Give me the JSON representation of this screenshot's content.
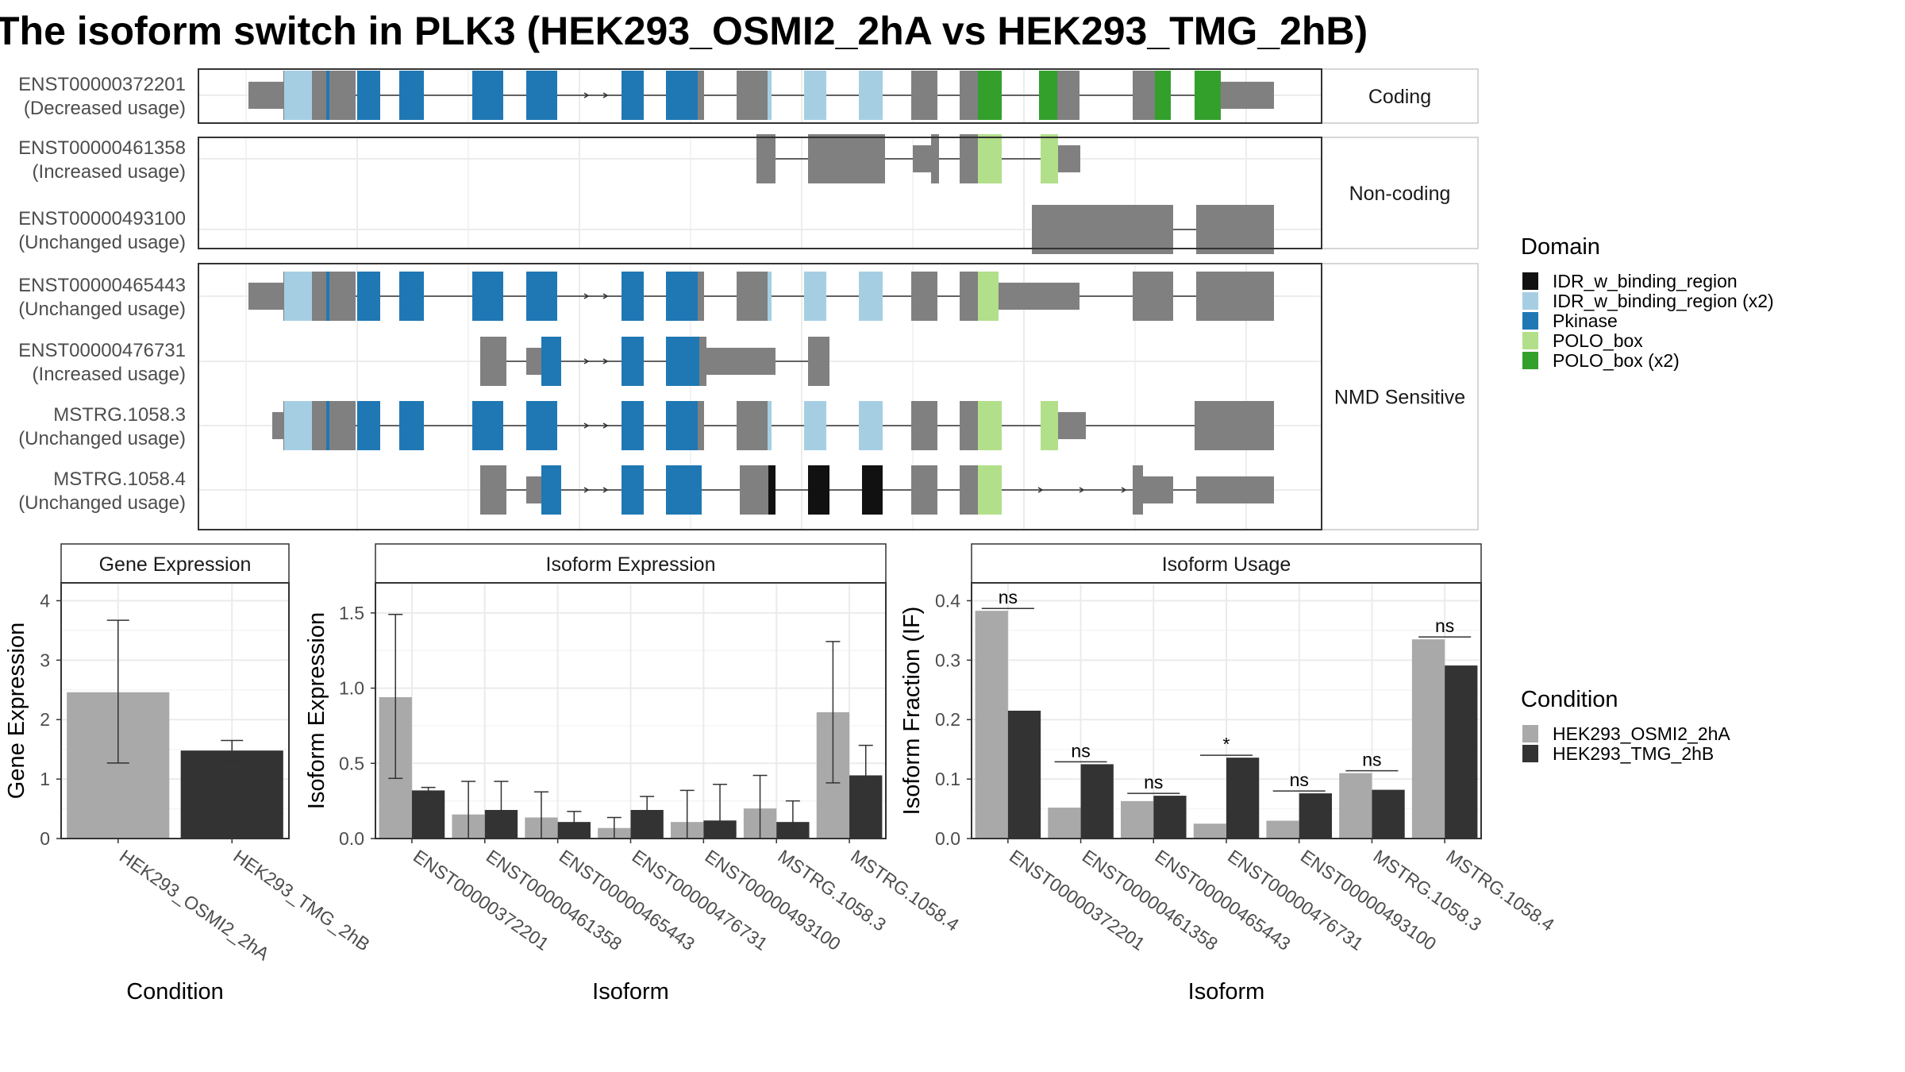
{
  "title": "The isoform switch in PLK3 (HEK293_OSMI2_2hA vs HEK293_TMG_2hB)",
  "colors": {
    "IDR_w_binding_region": "#111111",
    "IDR_w_binding_region_x2": "#a6cee3",
    "Pkinase": "#1f78b4",
    "POLO_box": "#b2df8a",
    "POLO_box_x2": "#33a02c",
    "exon": "#808080",
    "cond_a": "#a9a9a9",
    "cond_b": "#333333"
  },
  "transcripts": {
    "groups": [
      "Coding",
      "Non-coding",
      "NMD Sensitive"
    ],
    "rows": [
      {
        "id": "ENST00000372201",
        "usage": "(Decreased usage)",
        "group": 0
      },
      {
        "id": "ENST00000461358",
        "usage": "(Increased usage)",
        "group": 1
      },
      {
        "id": "ENST00000493100",
        "usage": "(Unchanged usage)",
        "group": 1
      },
      {
        "id": "ENST00000465443",
        "usage": "(Unchanged usage)",
        "group": 2
      },
      {
        "id": "ENST00000476731",
        "usage": "(Increased usage)",
        "group": 2
      },
      {
        "id": "MSTRG.1058.3",
        "usage": "(Unchanged usage)",
        "group": 2
      },
      {
        "id": "MSTRG.1058.4",
        "usage": "(Unchanged usage)",
        "group": 2
      }
    ]
  },
  "legend_domain": {
    "title": "Domain",
    "items": [
      {
        "label": "IDR_w_binding_region",
        "color": "#111111"
      },
      {
        "label": "IDR_w_binding_region (x2)",
        "color": "#a6cee3"
      },
      {
        "label": "Pkinase",
        "color": "#1f78b4"
      },
      {
        "label": "POLO_box",
        "color": "#b2df8a"
      },
      {
        "label": "POLO_box (x2)",
        "color": "#33a02c"
      }
    ]
  },
  "legend_condition": {
    "title": "Condition",
    "items": [
      {
        "label": "HEK293_OSMI2_2hA",
        "color": "#a9a9a9"
      },
      {
        "label": "HEK293_TMG_2hB",
        "color": "#333333"
      }
    ]
  },
  "chart_data": [
    {
      "type": "bar",
      "panel": "Gene Expression",
      "xlabel": "Condition",
      "ylabel": "Gene Expression",
      "ylim": [
        0,
        4.3
      ],
      "yticks": [
        0,
        1,
        2,
        3,
        4
      ],
      "categories": [
        "HEK293_OSMI2_2hA",
        "HEK293_TMG_2hB"
      ],
      "values": [
        2.46,
        1.48
      ],
      "error_low": [
        1.27,
        1.31
      ],
      "error_high": [
        3.67,
        1.65
      ],
      "grid": true
    },
    {
      "type": "bar",
      "panel": "Isoform Expression",
      "xlabel": "Isoform",
      "ylabel": "Isoform Expression",
      "ylim": [
        0,
        1.7
      ],
      "yticks": [
        0.0,
        0.5,
        1.0,
        1.5
      ],
      "categories": [
        "ENST00000372201",
        "ENST00000461358",
        "ENST00000465443",
        "ENST00000476731",
        "ENST00000493100",
        "MSTRG.1058.3",
        "MSTRG.1058.4"
      ],
      "series": [
        {
          "name": "HEK293_OSMI2_2hA",
          "values": [
            0.94,
            0.16,
            0.14,
            0.07,
            0.11,
            0.2,
            0.84
          ],
          "error_low": [
            0.4,
            0.0,
            0.0,
            0.0,
            0.0,
            0.0,
            0.37
          ],
          "error_high": [
            1.49,
            0.38,
            0.31,
            0.14,
            0.32,
            0.42,
            1.31
          ]
        },
        {
          "name": "HEK293_TMG_2hB",
          "values": [
            0.32,
            0.19,
            0.11,
            0.19,
            0.12,
            0.11,
            0.42
          ],
          "error_low": [
            0.3,
            0.0,
            0.04,
            0.1,
            0.0,
            0.0,
            0.22
          ],
          "error_high": [
            0.34,
            0.38,
            0.18,
            0.28,
            0.36,
            0.25,
            0.62
          ]
        }
      ],
      "grid": true
    },
    {
      "type": "bar",
      "panel": "Isoform Usage",
      "xlabel": "Isoform",
      "ylabel": "Isoform Fraction (IF)",
      "ylim": [
        0,
        0.43
      ],
      "yticks": [
        0.0,
        0.1,
        0.2,
        0.3,
        0.4
      ],
      "categories": [
        "ENST00000372201",
        "ENST00000461358",
        "ENST00000465443",
        "ENST00000476731",
        "ENST00000493100",
        "MSTRG.1058.3",
        "MSTRG.1058.4"
      ],
      "series": [
        {
          "name": "HEK293_OSMI2_2hA",
          "values": [
            0.383,
            0.052,
            0.063,
            0.025,
            0.03,
            0.11,
            0.335
          ]
        },
        {
          "name": "HEK293_TMG_2hB",
          "values": [
            0.215,
            0.125,
            0.072,
            0.136,
            0.076,
            0.082,
            0.291
          ]
        }
      ],
      "significance": [
        "ns",
        "ns",
        "ns",
        "*",
        "ns",
        "ns",
        "ns"
      ],
      "grid": true
    }
  ]
}
